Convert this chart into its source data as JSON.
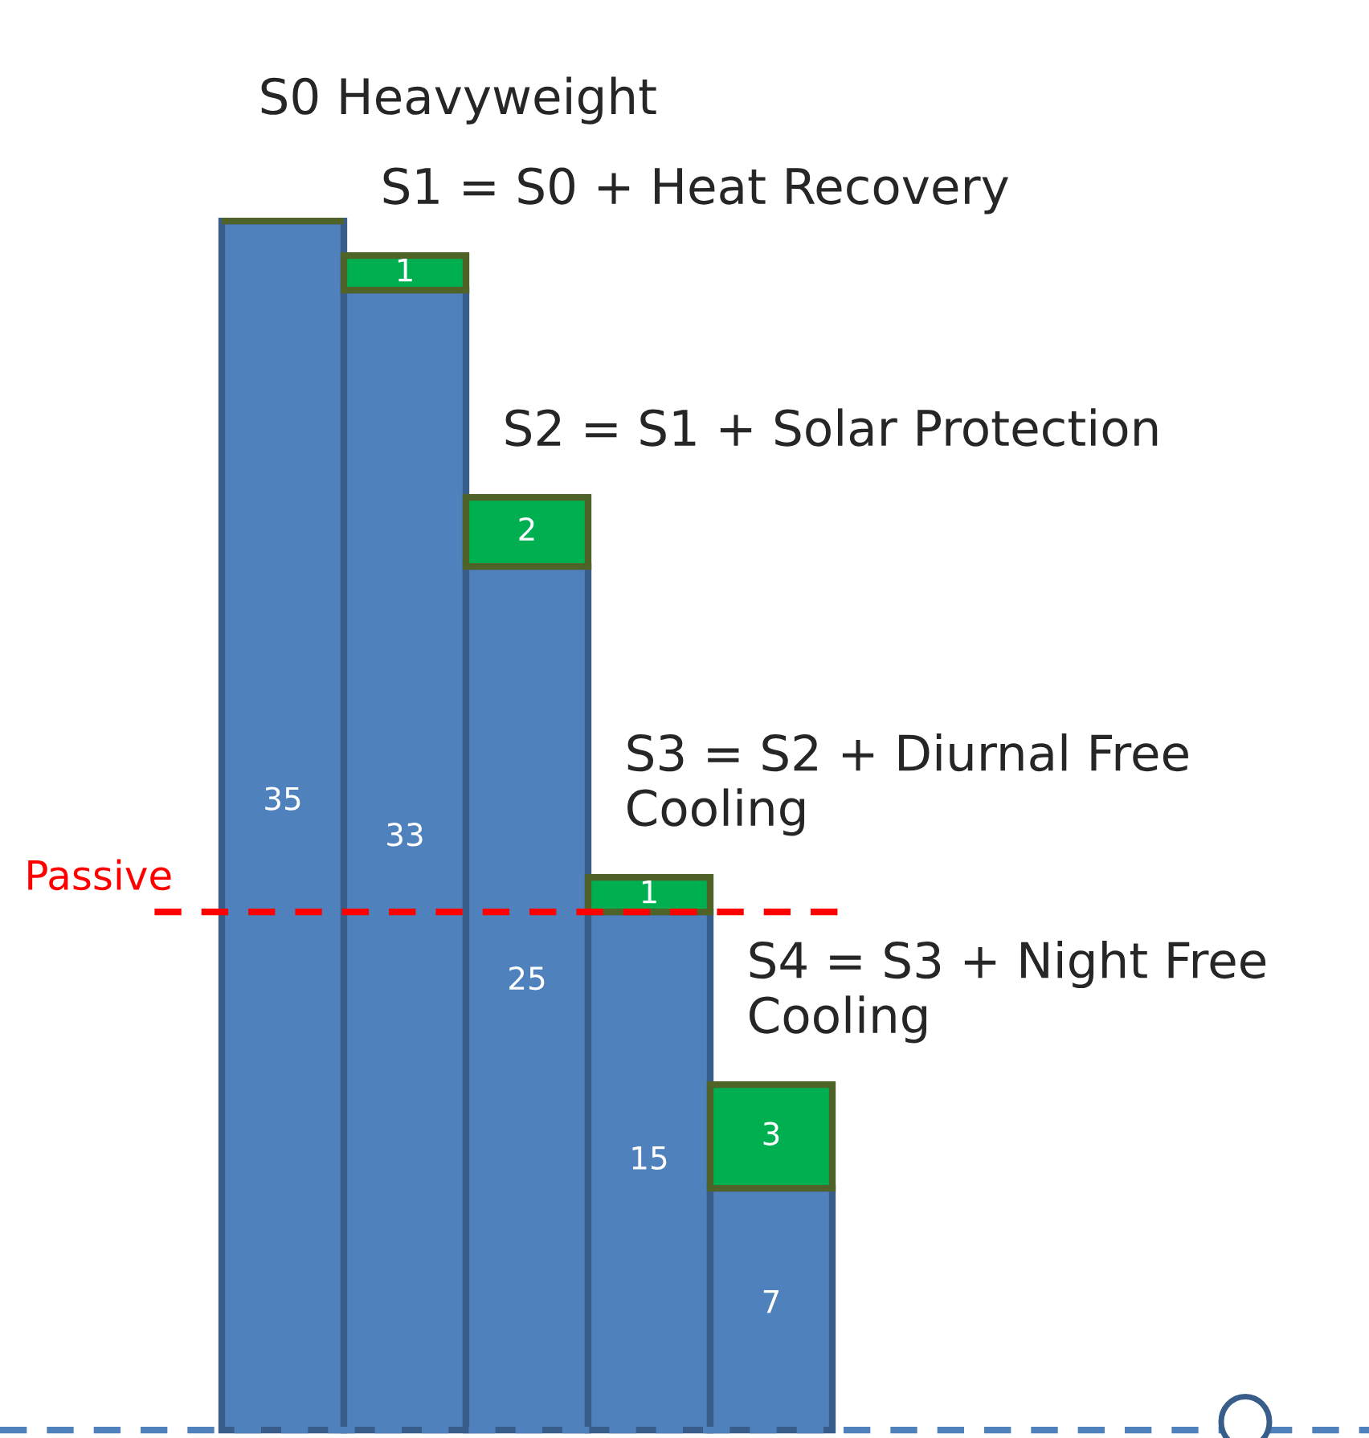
{
  "chart_data": {
    "type": "bar",
    "stacked": true,
    "data_labels": true,
    "categories": [
      null,
      null,
      null,
      null,
      null
    ],
    "annotations": [
      "S0 Heavyweight",
      "S1 = S0 + Heat Recovery",
      "S2 = S1 + Solar Protection",
      "S3 = S2 + Diurnal Free Cooling",
      "S4 = S3 + Night Free Cooling"
    ],
    "series": [
      {
        "color": "#4f81bd",
        "values": [
          35,
          33,
          25,
          15,
          7
        ]
      },
      {
        "color": "#00b050",
        "values": [
          null,
          1,
          2,
          1,
          3
        ]
      }
    ],
    "ref_lines": [
      {
        "axis": "y",
        "value": 15,
        "label": "Passive",
        "color": "#ff0000",
        "line_style": "dashed"
      },
      {
        "axis": "y",
        "value": 0,
        "label": null,
        "color": "#4f81bd",
        "line_style": "dashed"
      }
    ]
  }
}
